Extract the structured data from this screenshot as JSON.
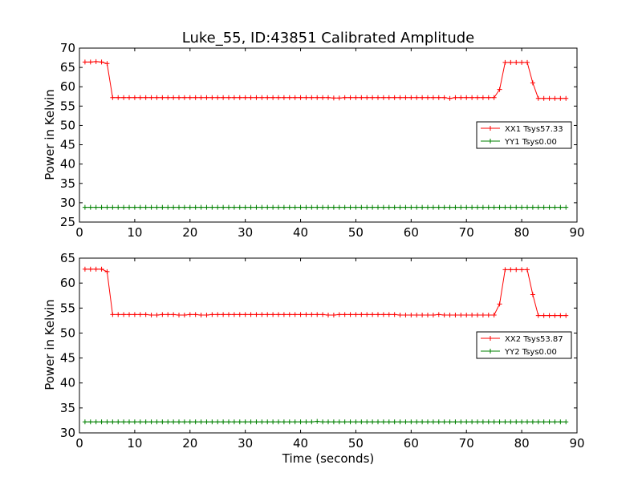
{
  "chart_data": [
    {
      "type": "line",
      "title": "Luke_55, ID:43851 Calibrated Amplitude",
      "xlabel": "",
      "ylabel": "Power in Kelvin",
      "xlim": [
        0,
        90
      ],
      "ylim": [
        25,
        70
      ],
      "xticks": [
        "0",
        "10",
        "20",
        "30",
        "40",
        "50",
        "60",
        "70",
        "80",
        "90"
      ],
      "yticks": [
        "25",
        "30",
        "35",
        "40",
        "45",
        "50",
        "55",
        "60",
        "65",
        "70"
      ],
      "legend_position": "center-right",
      "x": [
        1,
        2,
        3,
        4,
        5,
        6,
        7,
        8,
        9,
        10,
        11,
        12,
        13,
        14,
        15,
        16,
        17,
        18,
        19,
        20,
        21,
        22,
        23,
        24,
        25,
        26,
        27,
        28,
        29,
        30,
        31,
        32,
        33,
        34,
        35,
        36,
        37,
        38,
        39,
        40,
        41,
        42,
        43,
        44,
        45,
        46,
        47,
        48,
        49,
        50,
        51,
        52,
        53,
        54,
        55,
        56,
        57,
        58,
        59,
        60,
        61,
        62,
        63,
        64,
        65,
        66,
        67,
        68,
        69,
        70,
        71,
        72,
        73,
        74,
        75,
        76,
        77,
        78,
        79,
        80,
        81,
        82,
        83,
        84,
        85,
        86,
        87,
        88
      ],
      "series": [
        {
          "name": "XX1 Tsys57.33",
          "color": "#ff0000",
          "values": [
            66.4,
            66.4,
            66.5,
            66.4,
            66.0,
            57.2,
            57.2,
            57.2,
            57.2,
            57.2,
            57.2,
            57.2,
            57.2,
            57.2,
            57.2,
            57.2,
            57.2,
            57.2,
            57.2,
            57.2,
            57.2,
            57.2,
            57.2,
            57.2,
            57.2,
            57.2,
            57.2,
            57.2,
            57.2,
            57.2,
            57.2,
            57.2,
            57.2,
            57.2,
            57.2,
            57.2,
            57.2,
            57.2,
            57.2,
            57.2,
            57.2,
            57.2,
            57.2,
            57.2,
            57.2,
            57.1,
            57.1,
            57.2,
            57.2,
            57.2,
            57.2,
            57.2,
            57.2,
            57.2,
            57.2,
            57.2,
            57.2,
            57.2,
            57.2,
            57.2,
            57.2,
            57.2,
            57.2,
            57.2,
            57.2,
            57.2,
            57.0,
            57.2,
            57.2,
            57.2,
            57.2,
            57.2,
            57.2,
            57.2,
            57.2,
            59.3,
            66.3,
            66.3,
            66.3,
            66.3,
            66.3,
            61.0,
            57.0,
            57.0,
            57.0,
            57.0,
            57.0,
            57.0
          ]
        },
        {
          "name": "YY1 Tsys0.00",
          "color": "#008000",
          "values": [
            28.8,
            28.8,
            28.8,
            28.8,
            28.8,
            28.8,
            28.8,
            28.8,
            28.8,
            28.8,
            28.8,
            28.8,
            28.8,
            28.8,
            28.8,
            28.8,
            28.8,
            28.8,
            28.8,
            28.8,
            28.8,
            28.8,
            28.8,
            28.8,
            28.8,
            28.8,
            28.8,
            28.8,
            28.8,
            28.8,
            28.8,
            28.8,
            28.8,
            28.8,
            28.8,
            28.8,
            28.8,
            28.8,
            28.8,
            28.8,
            28.8,
            28.8,
            28.8,
            28.8,
            28.8,
            28.8,
            28.8,
            28.8,
            28.8,
            28.8,
            28.8,
            28.8,
            28.8,
            28.8,
            28.8,
            28.8,
            28.8,
            28.8,
            28.8,
            28.8,
            28.8,
            28.8,
            28.8,
            28.8,
            28.8,
            28.8,
            28.8,
            28.8,
            28.8,
            28.8,
            28.8,
            28.8,
            28.8,
            28.8,
            28.8,
            28.8,
            28.8,
            28.8,
            28.8,
            28.8,
            28.8,
            28.8,
            28.8,
            28.8,
            28.8,
            28.8,
            28.8,
            28.8
          ]
        }
      ]
    },
    {
      "type": "line",
      "title": "",
      "xlabel": "Time (seconds)",
      "ylabel": "Power in Kelvin",
      "xlim": [
        0,
        90
      ],
      "ylim": [
        30,
        65
      ],
      "xticks": [
        "0",
        "10",
        "20",
        "30",
        "40",
        "50",
        "60",
        "70",
        "80",
        "90"
      ],
      "yticks": [
        "30",
        "35",
        "40",
        "45",
        "50",
        "55",
        "60",
        "65"
      ],
      "legend_position": "center-right",
      "x": [
        1,
        2,
        3,
        4,
        5,
        6,
        7,
        8,
        9,
        10,
        11,
        12,
        13,
        14,
        15,
        16,
        17,
        18,
        19,
        20,
        21,
        22,
        23,
        24,
        25,
        26,
        27,
        28,
        29,
        30,
        31,
        32,
        33,
        34,
        35,
        36,
        37,
        38,
        39,
        40,
        41,
        42,
        43,
        44,
        45,
        46,
        47,
        48,
        49,
        50,
        51,
        52,
        53,
        54,
        55,
        56,
        57,
        58,
        59,
        60,
        61,
        62,
        63,
        64,
        65,
        66,
        67,
        68,
        69,
        70,
        71,
        72,
        73,
        74,
        75,
        76,
        77,
        78,
        79,
        80,
        81,
        82,
        83,
        84,
        85,
        86,
        87,
        88
      ],
      "series": [
        {
          "name": "XX2 Tsys53.87",
          "color": "#ff0000",
          "values": [
            62.8,
            62.8,
            62.8,
            62.8,
            62.3,
            53.7,
            53.7,
            53.7,
            53.7,
            53.7,
            53.7,
            53.7,
            53.6,
            53.6,
            53.7,
            53.7,
            53.7,
            53.6,
            53.6,
            53.7,
            53.7,
            53.6,
            53.6,
            53.7,
            53.7,
            53.7,
            53.7,
            53.7,
            53.7,
            53.7,
            53.7,
            53.7,
            53.7,
            53.7,
            53.7,
            53.7,
            53.7,
            53.7,
            53.7,
            53.7,
            53.7,
            53.7,
            53.7,
            53.7,
            53.6,
            53.6,
            53.7,
            53.7,
            53.7,
            53.7,
            53.7,
            53.7,
            53.7,
            53.7,
            53.7,
            53.7,
            53.7,
            53.6,
            53.6,
            53.6,
            53.6,
            53.6,
            53.6,
            53.6,
            53.7,
            53.6,
            53.6,
            53.6,
            53.6,
            53.6,
            53.6,
            53.6,
            53.6,
            53.6,
            53.6,
            55.8,
            62.7,
            62.7,
            62.7,
            62.7,
            62.7,
            57.7,
            53.5,
            53.5,
            53.5,
            53.5,
            53.5,
            53.5
          ]
        },
        {
          "name": "YY2 Tsys0.00",
          "color": "#008000",
          "values": [
            32.2,
            32.2,
            32.2,
            32.2,
            32.2,
            32.2,
            32.2,
            32.2,
            32.2,
            32.2,
            32.2,
            32.2,
            32.2,
            32.2,
            32.2,
            32.2,
            32.2,
            32.2,
            32.2,
            32.2,
            32.2,
            32.2,
            32.2,
            32.2,
            32.2,
            32.2,
            32.2,
            32.2,
            32.2,
            32.2,
            32.2,
            32.2,
            32.2,
            32.2,
            32.2,
            32.2,
            32.2,
            32.2,
            32.2,
            32.2,
            32.2,
            32.2,
            32.3,
            32.2,
            32.2,
            32.2,
            32.2,
            32.2,
            32.2,
            32.2,
            32.2,
            32.2,
            32.2,
            32.2,
            32.2,
            32.2,
            32.2,
            32.2,
            32.2,
            32.2,
            32.2,
            32.2,
            32.2,
            32.2,
            32.2,
            32.2,
            32.2,
            32.2,
            32.2,
            32.2,
            32.2,
            32.2,
            32.2,
            32.2,
            32.2,
            32.2,
            32.2,
            32.2,
            32.2,
            32.2,
            32.2,
            32.2,
            32.2,
            32.2,
            32.2,
            32.2,
            32.2,
            32.2
          ]
        }
      ]
    }
  ]
}
